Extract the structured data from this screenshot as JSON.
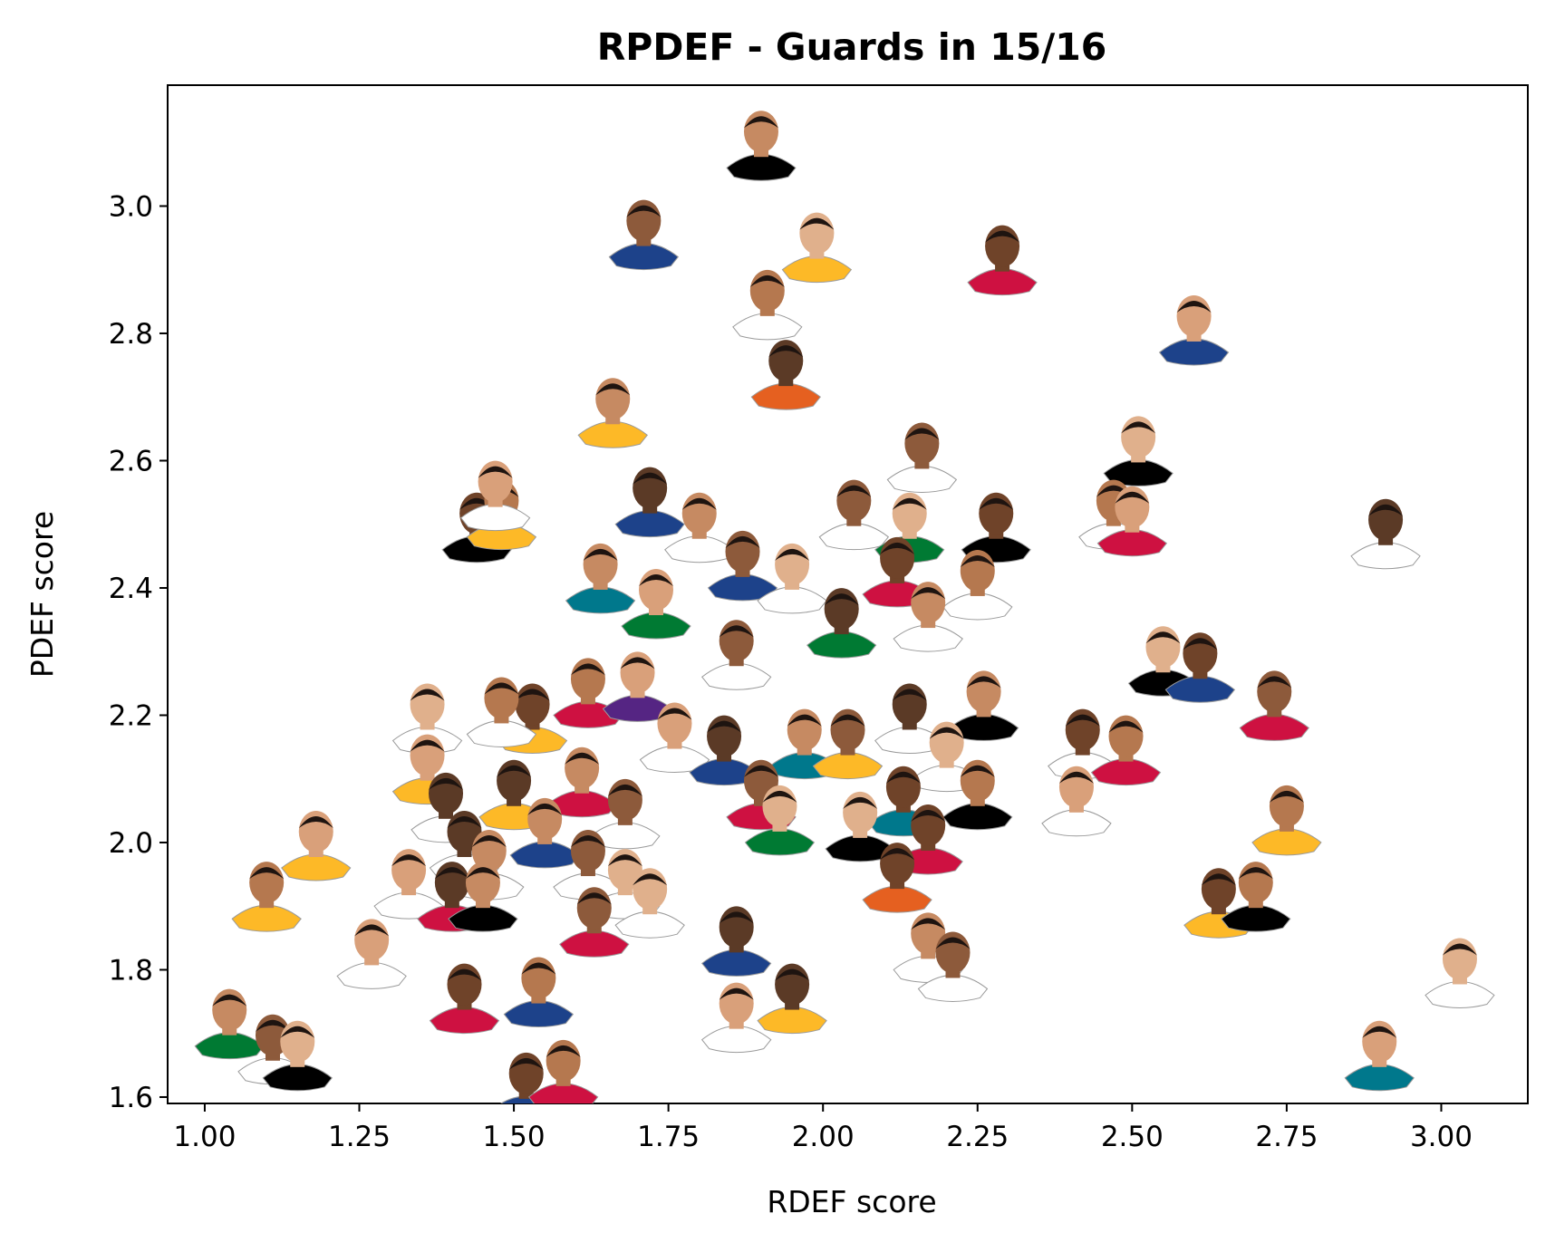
{
  "chart_data": {
    "type": "scatter",
    "title": "RPDEF - Guards in 15/16",
    "xlabel": "RDEF score",
    "ylabel": "PDEF score",
    "xlim": [
      0.94,
      3.14
    ],
    "ylim": [
      1.59,
      3.19
    ],
    "xticks": [
      1.0,
      1.25,
      1.5,
      1.75,
      2.0,
      2.25,
      2.5,
      2.75,
      3.0
    ],
    "xtick_labels": [
      "1.00",
      "1.25",
      "1.50",
      "1.75",
      "2.00",
      "2.25",
      "2.50",
      "2.75",
      "3.00"
    ],
    "yticks": [
      1.6,
      1.8,
      2.0,
      2.2,
      2.4,
      2.6,
      2.8,
      3.0
    ],
    "ytick_labels": [
      "1.6",
      "1.8",
      "2.0",
      "2.2",
      "2.4",
      "2.6",
      "2.8",
      "3.0"
    ],
    "grid": false,
    "marker": "player-headshot",
    "jersey_colors": [
      "#1d428a",
      "#ce1141",
      "#000000",
      "#552583",
      "#fdb927",
      "#007a33",
      "#ffffff",
      "#00788c",
      "#e56020"
    ],
    "points": [
      {
        "x": 1.9,
        "y": 3.1,
        "jersey": "#000000"
      },
      {
        "x": 1.71,
        "y": 2.96,
        "jersey": "#1d428a"
      },
      {
        "x": 1.99,
        "y": 2.94,
        "jersey": "#fdb927"
      },
      {
        "x": 2.29,
        "y": 2.92,
        "jersey": "#ce1141"
      },
      {
        "x": 1.91,
        "y": 2.85,
        "jersey": "#ffffff"
      },
      {
        "x": 2.6,
        "y": 2.81,
        "jersey": "#1d428a"
      },
      {
        "x": 1.94,
        "y": 2.74,
        "jersey": "#e56020"
      },
      {
        "x": 1.66,
        "y": 2.68,
        "jersey": "#fdb927"
      },
      {
        "x": 2.16,
        "y": 2.61,
        "jersey": "#ffffff"
      },
      {
        "x": 2.51,
        "y": 2.62,
        "jersey": "#000000"
      },
      {
        "x": 1.44,
        "y": 2.5,
        "jersey": "#000000"
      },
      {
        "x": 1.48,
        "y": 2.52,
        "jersey": "#fdb927"
      },
      {
        "x": 1.47,
        "y": 2.55,
        "jersey": "#ffffff"
      },
      {
        "x": 1.72,
        "y": 2.54,
        "jersey": "#1d428a"
      },
      {
        "x": 1.8,
        "y": 2.5,
        "jersey": "#ffffff"
      },
      {
        "x": 2.05,
        "y": 2.52,
        "jersey": "#ffffff"
      },
      {
        "x": 2.14,
        "y": 2.5,
        "jersey": "#007a33"
      },
      {
        "x": 2.28,
        "y": 2.5,
        "jersey": "#000000"
      },
      {
        "x": 2.47,
        "y": 2.52,
        "jersey": "#ffffff"
      },
      {
        "x": 2.5,
        "y": 2.51,
        "jersey": "#ce1141"
      },
      {
        "x": 2.91,
        "y": 2.49,
        "jersey": "#ffffff"
      },
      {
        "x": 1.64,
        "y": 2.42,
        "jersey": "#00788c"
      },
      {
        "x": 1.87,
        "y": 2.44,
        "jersey": "#1d428a"
      },
      {
        "x": 1.95,
        "y": 2.42,
        "jersey": "#ffffff"
      },
      {
        "x": 2.12,
        "y": 2.43,
        "jersey": "#ce1141"
      },
      {
        "x": 2.25,
        "y": 2.41,
        "jersey": "#ffffff"
      },
      {
        "x": 1.73,
        "y": 2.38,
        "jersey": "#007a33"
      },
      {
        "x": 2.03,
        "y": 2.35,
        "jersey": "#007a33"
      },
      {
        "x": 2.17,
        "y": 2.36,
        "jersey": "#ffffff"
      },
      {
        "x": 1.86,
        "y": 2.3,
        "jersey": "#ffffff"
      },
      {
        "x": 2.55,
        "y": 2.29,
        "jersey": "#000000"
      },
      {
        "x": 2.61,
        "y": 2.28,
        "jersey": "#1d428a"
      },
      {
        "x": 1.62,
        "y": 2.24,
        "jersey": "#ce1141"
      },
      {
        "x": 1.7,
        "y": 2.25,
        "jersey": "#552583"
      },
      {
        "x": 2.14,
        "y": 2.2,
        "jersey": "#ffffff"
      },
      {
        "x": 2.26,
        "y": 2.22,
        "jersey": "#000000"
      },
      {
        "x": 2.73,
        "y": 2.22,
        "jersey": "#ce1141"
      },
      {
        "x": 1.36,
        "y": 2.2,
        "jersey": "#ffffff"
      },
      {
        "x": 1.53,
        "y": 2.2,
        "jersey": "#fdb927"
      },
      {
        "x": 1.48,
        "y": 2.21,
        "jersey": "#ffffff"
      },
      {
        "x": 1.76,
        "y": 2.17,
        "jersey": "#ffffff"
      },
      {
        "x": 1.84,
        "y": 2.15,
        "jersey": "#1d428a"
      },
      {
        "x": 1.97,
        "y": 2.16,
        "jersey": "#00788c"
      },
      {
        "x": 2.04,
        "y": 2.16,
        "jersey": "#fdb927"
      },
      {
        "x": 2.2,
        "y": 2.14,
        "jersey": "#ffffff"
      },
      {
        "x": 2.42,
        "y": 2.16,
        "jersey": "#ffffff"
      },
      {
        "x": 2.49,
        "y": 2.15,
        "jersey": "#ce1141"
      },
      {
        "x": 1.36,
        "y": 2.12,
        "jersey": "#fdb927"
      },
      {
        "x": 1.5,
        "y": 2.08,
        "jersey": "#fdb927"
      },
      {
        "x": 1.61,
        "y": 2.1,
        "jersey": "#ce1141"
      },
      {
        "x": 1.9,
        "y": 2.08,
        "jersey": "#ce1141"
      },
      {
        "x": 1.93,
        "y": 2.04,
        "jersey": "#007a33"
      },
      {
        "x": 2.13,
        "y": 2.07,
        "jersey": "#00788c"
      },
      {
        "x": 2.25,
        "y": 2.08,
        "jersey": "#000000"
      },
      {
        "x": 2.41,
        "y": 2.07,
        "jersey": "#ffffff"
      },
      {
        "x": 1.39,
        "y": 2.06,
        "jersey": "#ffffff"
      },
      {
        "x": 1.55,
        "y": 2.02,
        "jersey": "#1d428a"
      },
      {
        "x": 1.68,
        "y": 2.05,
        "jersey": "#ffffff"
      },
      {
        "x": 2.06,
        "y": 2.03,
        "jersey": "#000000"
      },
      {
        "x": 2.17,
        "y": 2.01,
        "jersey": "#ce1141"
      },
      {
        "x": 2.75,
        "y": 2.04,
        "jersey": "#fdb927"
      },
      {
        "x": 1.18,
        "y": 2.0,
        "jersey": "#fdb927"
      },
      {
        "x": 1.42,
        "y": 2.0,
        "jersey": "#ffffff"
      },
      {
        "x": 1.46,
        "y": 1.97,
        "jersey": "#ffffff"
      },
      {
        "x": 1.62,
        "y": 1.97,
        "jersey": "#ffffff"
      },
      {
        "x": 1.68,
        "y": 1.94,
        "jersey": "#ffffff"
      },
      {
        "x": 2.12,
        "y": 1.95,
        "jersey": "#e56020"
      },
      {
        "x": 1.1,
        "y": 1.92,
        "jersey": "#fdb927"
      },
      {
        "x": 1.33,
        "y": 1.94,
        "jersey": "#ffffff"
      },
      {
        "x": 1.4,
        "y": 1.92,
        "jersey": "#ce1141"
      },
      {
        "x": 1.45,
        "y": 1.92,
        "jersey": "#000000"
      },
      {
        "x": 1.63,
        "y": 1.88,
        "jersey": "#ce1141"
      },
      {
        "x": 1.72,
        "y": 1.91,
        "jersey": "#ffffff"
      },
      {
        "x": 2.64,
        "y": 1.91,
        "jersey": "#fdb927"
      },
      {
        "x": 2.7,
        "y": 1.92,
        "jersey": "#000000"
      },
      {
        "x": 1.27,
        "y": 1.83,
        "jersey": "#ffffff"
      },
      {
        "x": 1.86,
        "y": 1.85,
        "jersey": "#1d428a"
      },
      {
        "x": 2.17,
        "y": 1.84,
        "jersey": "#ffffff"
      },
      {
        "x": 2.21,
        "y": 1.81,
        "jersey": "#ffffff"
      },
      {
        "x": 3.03,
        "y": 1.8,
        "jersey": "#ffffff"
      },
      {
        "x": 1.42,
        "y": 1.76,
        "jersey": "#ce1141"
      },
      {
        "x": 1.54,
        "y": 1.77,
        "jersey": "#1d428a"
      },
      {
        "x": 1.86,
        "y": 1.73,
        "jersey": "#ffffff"
      },
      {
        "x": 1.95,
        "y": 1.76,
        "jersey": "#fdb927"
      },
      {
        "x": 1.04,
        "y": 1.72,
        "jersey": "#007a33"
      },
      {
        "x": 1.11,
        "y": 1.68,
        "jersey": "#ffffff"
      },
      {
        "x": 1.15,
        "y": 1.67,
        "jersey": "#000000"
      },
      {
        "x": 1.52,
        "y": 1.62,
        "jersey": "#1d428a"
      },
      {
        "x": 1.58,
        "y": 1.64,
        "jersey": "#ce1141"
      },
      {
        "x": 2.9,
        "y": 1.67,
        "jersey": "#00788c"
      }
    ]
  }
}
